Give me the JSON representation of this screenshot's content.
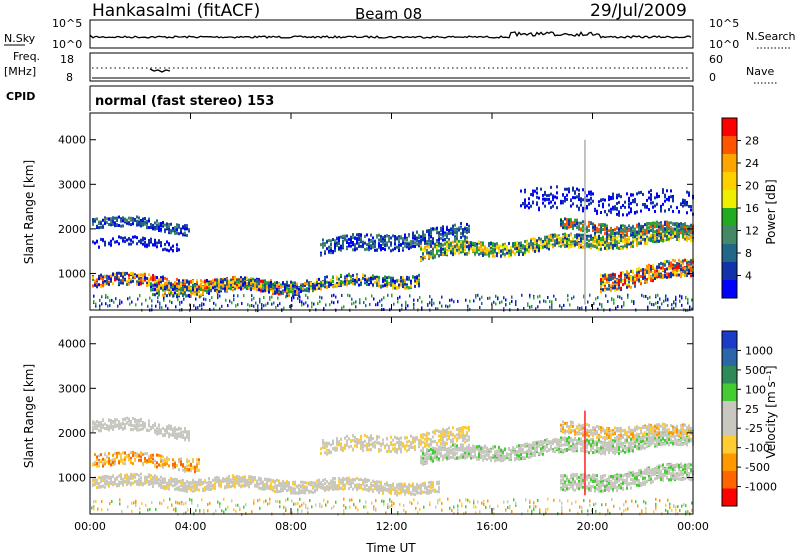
{
  "header": {
    "station": "Hankasalmi (fitACF)",
    "beam": "Beam 08",
    "date": "29/Jul/2009"
  },
  "noise_panel": {
    "left_label": "N.Sky",
    "right_label": "N.Search",
    "left_ticks": [
      "10^5",
      "10^0"
    ],
    "right_ticks": [
      "10^5",
      "10^0"
    ]
  },
  "freq_panel": {
    "left_label_1": "Freq.",
    "left_label_2": "[MHz]",
    "left_ticks": [
      "18",
      "8"
    ],
    "right_label": "Nave",
    "right_ticks": [
      "60",
      "0"
    ]
  },
  "cpid": {
    "label": "CPID",
    "value": "normal (fast stereo) 153"
  },
  "chart_data": [
    {
      "type": "heatmap",
      "title": "",
      "ylabel": "Slant Range [km]",
      "xlabel": "",
      "ylim": [
        180,
        4600
      ],
      "yticks": [
        "1000",
        "2000",
        "3000",
        "4000"
      ],
      "colorbar": {
        "label": "Power [dB]",
        "ticks": [
          "28",
          "24",
          "20",
          "16",
          "12",
          "8",
          "4"
        ],
        "colors": [
          "#ff0000",
          "#ff5500",
          "#ffa500",
          "#ffd000",
          "#eeee00",
          "#22aa22",
          "#448866",
          "#226688",
          "#1133aa",
          "#0000ff"
        ]
      }
    },
    {
      "type": "heatmap",
      "title": "",
      "ylabel": "Slant Range [km]",
      "xlabel": "Time UT",
      "ylim": [
        180,
        4600
      ],
      "yticks": [
        "1000",
        "2000",
        "3000",
        "4000"
      ],
      "xticks": [
        "00:00",
        "04:00",
        "08:00",
        "12:00",
        "16:00",
        "20:00",
        "00:00"
      ],
      "colorbar": {
        "label": "Velocity [m s⁻¹]",
        "ticks": [
          "1000",
          "500",
          "100",
          "25",
          "-25",
          "-100",
          "-500",
          "-1000"
        ],
        "colors": [
          "#1a3cc8",
          "#2a66a8",
          "#2e8b57",
          "#44cc33",
          "#c8c8c0",
          "#c8c8c0",
          "#ffcc33",
          "#ff9900",
          "#ff6600",
          "#ff0000"
        ]
      }
    }
  ]
}
